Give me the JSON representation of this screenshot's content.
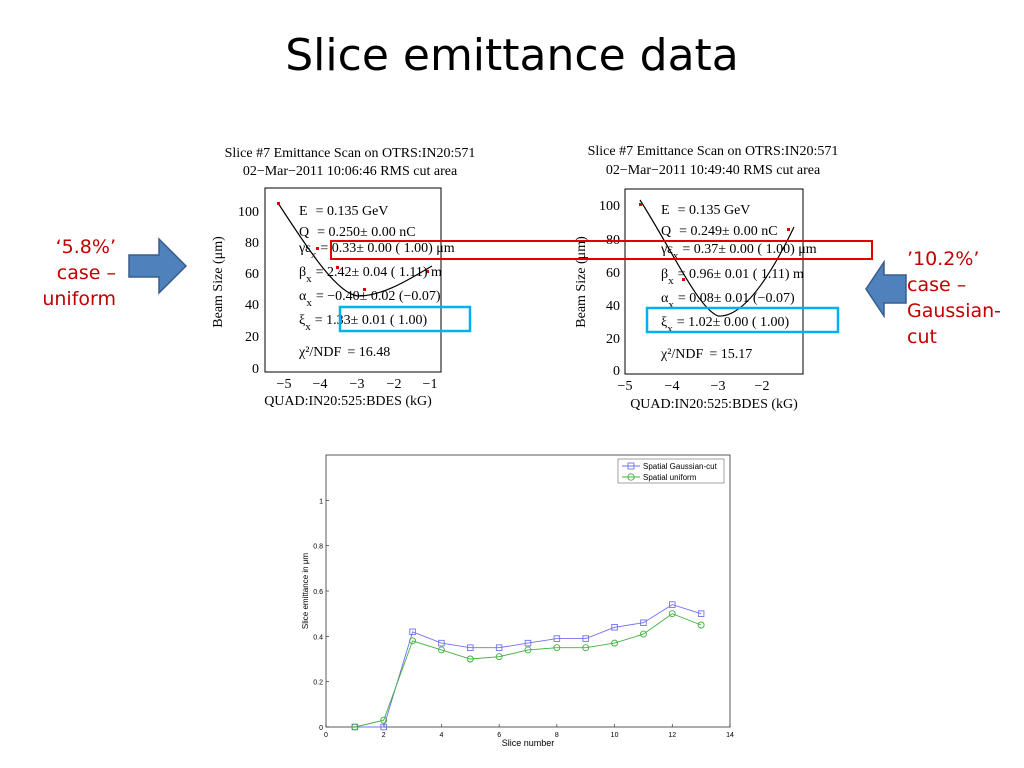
{
  "slide": {
    "title": "Slice emittance data",
    "left_label": [
      "‘5.8%’",
      "case –",
      "uniform"
    ],
    "right_label": [
      "’10.2%’",
      "case –",
      "Gaussian-",
      "cut"
    ],
    "arrow_color": "#4f81bd",
    "label_color": "#c00000",
    "highlight_red": "#e00000",
    "highlight_blue": "#00b0f0"
  },
  "scans": [
    {
      "title_line1": "Slice #7 Emittance Scan on OTRS:IN20:571",
      "title_line2": "02−Mar−2011 10:06:46 RMS cut area",
      "xlabel": "QUAD:IN20:525:BDES  (kG)",
      "ylabel": "Beam Size  (μm)",
      "xticks": [
        "−5",
        "−4",
        "−3",
        "−2",
        "−1"
      ],
      "yticks": [
        "0",
        "20",
        "40",
        "60",
        "80",
        "100"
      ],
      "params": [
        {
          "sym": "E",
          "sub": "",
          "val": "=  0.135 GeV"
        },
        {
          "sym": "Q",
          "sub": "",
          "val": "=  0.250± 0.00 nC"
        },
        {
          "sym": "γε",
          "sub": "x",
          "val": "=  0.33± 0.00 ( 1.00) μm"
        },
        {
          "sym": "β",
          "sub": "x",
          "val": "=  2.42± 0.04 ( 1.11) m"
        },
        {
          "sym": "α",
          "sub": "x",
          "val": "=  −0.40± 0.02 (−0.07)"
        },
        {
          "sym": "ξ",
          "sub": "x",
          "val": "=  1.33± 0.01 ( 1.00)"
        },
        {
          "sym": "χ²/NDF",
          "sub": "",
          "val": "=  16.48"
        }
      ]
    },
    {
      "title_line1": "Slice #7 Emittance Scan on OTRS:IN20:571",
      "title_line2": "02−Mar−2011 10:49:40 RMS cut area",
      "xlabel": "QUAD:IN20:525:BDES  (kG)",
      "ylabel": "Beam Size  (μm)",
      "xticks": [
        "−5",
        "−4",
        "−3",
        "−2"
      ],
      "yticks": [
        "0",
        "20",
        "40",
        "60",
        "80",
        "100"
      ],
      "params": [
        {
          "sym": "E",
          "sub": "",
          "val": "=  0.135 GeV"
        },
        {
          "sym": "Q",
          "sub": "",
          "val": "=  0.249± 0.00 nC"
        },
        {
          "sym": "γε",
          "sub": "x",
          "val": "=  0.37± 0.00 ( 1.00) μm"
        },
        {
          "sym": "β",
          "sub": "x",
          "val": "=  0.96± 0.01 ( 1.11) m"
        },
        {
          "sym": "α",
          "sub": "x",
          "val": "=  0.08± 0.01 (−0.07)"
        },
        {
          "sym": "ξ",
          "sub": "x",
          "val": "=  1.02± 0.00 ( 1.00)"
        },
        {
          "sym": "χ²/NDF",
          "sub": "",
          "val": "=  15.17"
        }
      ]
    }
  ],
  "chart_data": {
    "type": "line",
    "title": "",
    "xlabel": "Slice number",
    "ylabel": "Slice emittance in μm",
    "xlim": [
      0,
      14
    ],
    "ylim": [
      0,
      1.2
    ],
    "xticks": [
      0,
      2,
      4,
      6,
      8,
      10,
      12,
      14
    ],
    "yticks": [
      0,
      0.2,
      0.4,
      0.6,
      0.8,
      1
    ],
    "grid": false,
    "legend": "top-right",
    "x": [
      1,
      2,
      3,
      4,
      5,
      6,
      7,
      8,
      9,
      10,
      11,
      12,
      13
    ],
    "series": [
      {
        "name": "Spatial Gaussian-cut",
        "marker": "square",
        "color": "#7070f0",
        "values": [
          0.0,
          0.0,
          0.42,
          0.37,
          0.35,
          0.35,
          0.37,
          0.39,
          0.39,
          0.44,
          0.46,
          0.54,
          0.5
        ]
      },
      {
        "name": "Spatial uniform",
        "marker": "circle",
        "color": "#40b040",
        "values": [
          0.0,
          0.03,
          0.38,
          0.34,
          0.3,
          0.31,
          0.34,
          0.35,
          0.35,
          0.37,
          0.41,
          0.5,
          0.45
        ]
      }
    ]
  }
}
